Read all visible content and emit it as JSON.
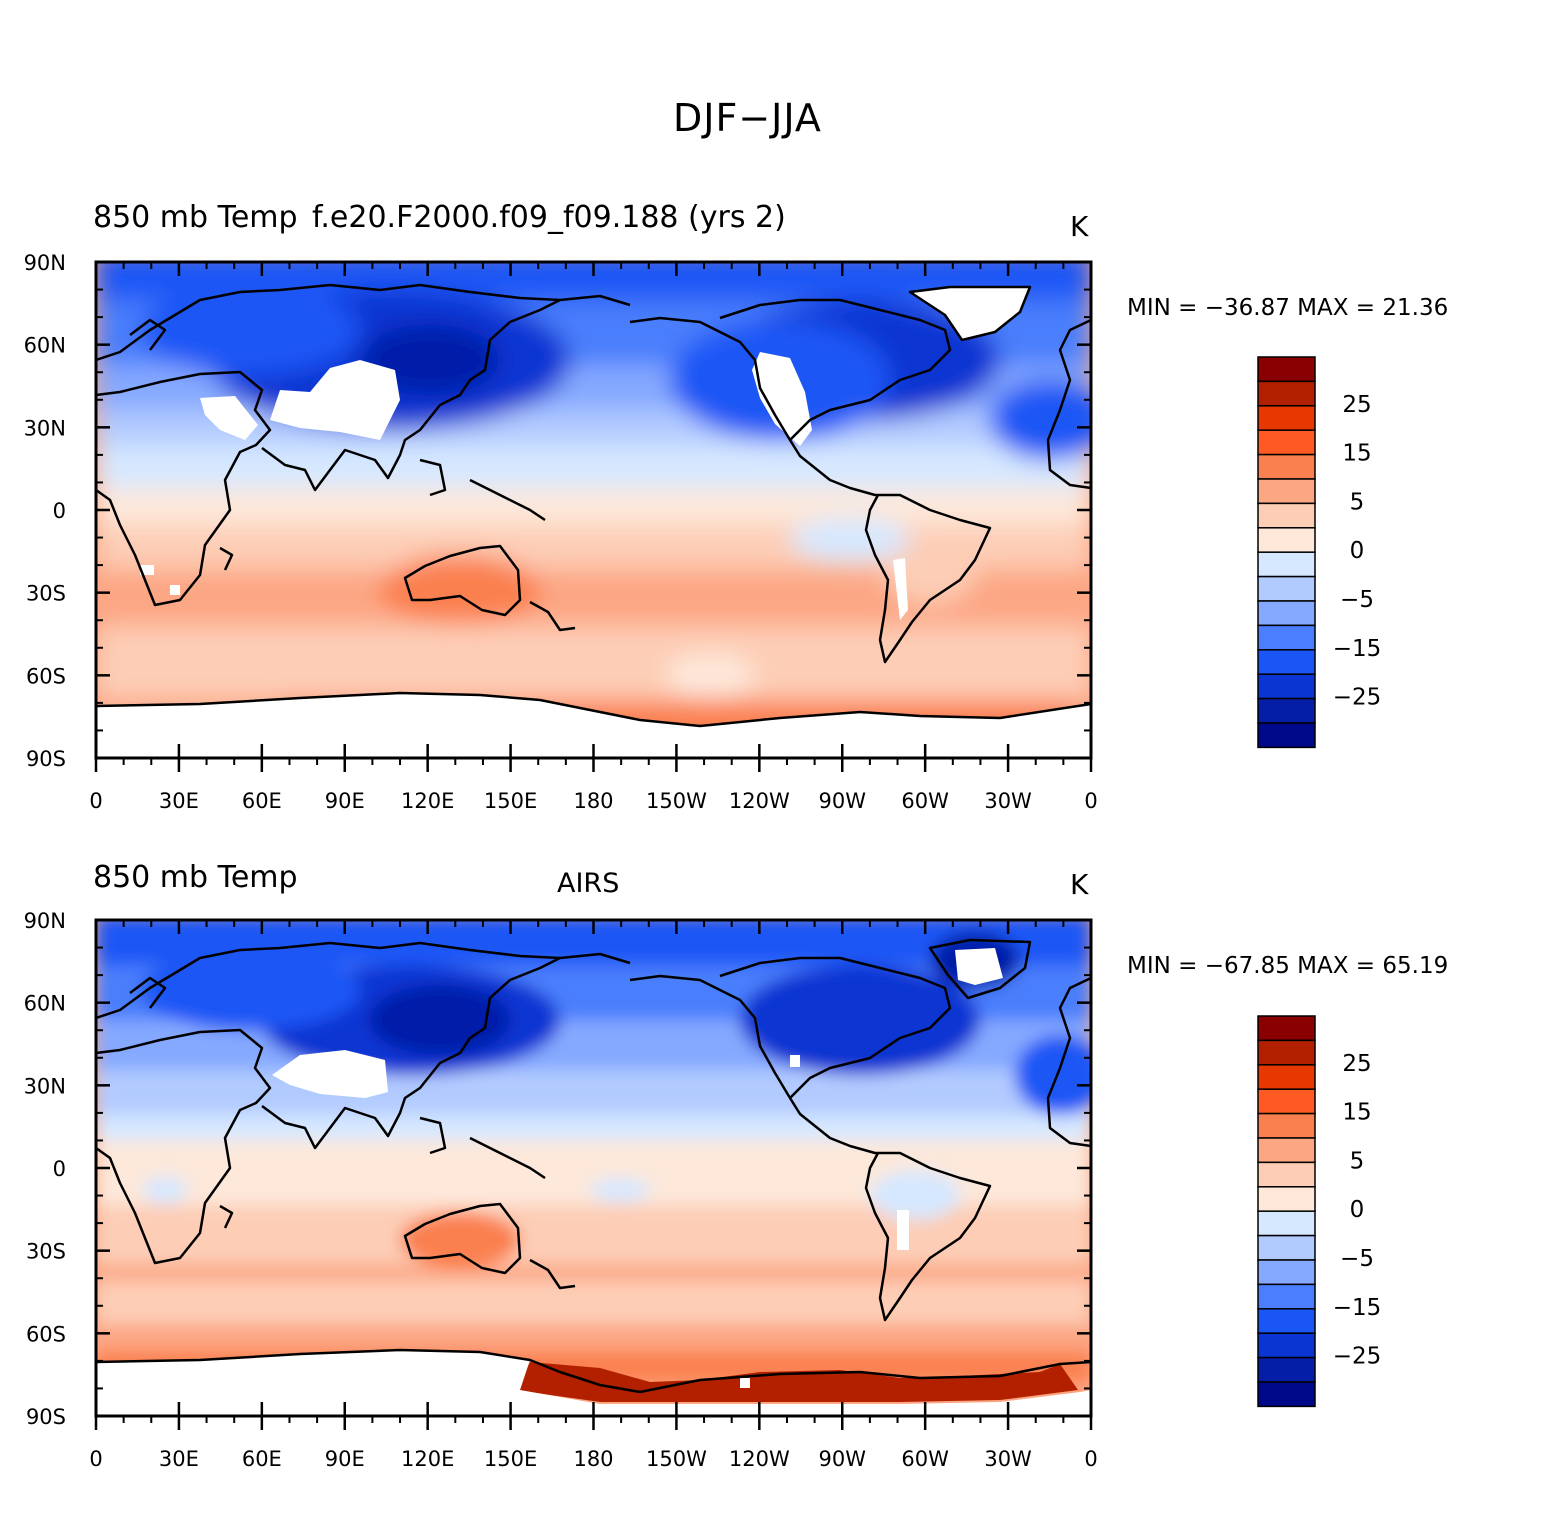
{
  "title": "DJF−JJA",
  "panels": [
    {
      "left_string": "850 mb Temp",
      "center_string": "f.e20.F2000.f09_f09.188 (yrs 2)",
      "right_string": "K",
      "minmax": "MIN = −36.87  MAX =   21.36"
    },
    {
      "left_string": "850 mb Temp",
      "center_string": "AIRS",
      "right_string": "K",
      "minmax": "MIN = −67.85  MAX =   65.19"
    }
  ],
  "lat_ticks": [
    "90N",
    "60N",
    "30N",
    "0",
    "30S",
    "60S",
    "90S"
  ],
  "lon_ticks": [
    "0",
    "30E",
    "60E",
    "90E",
    "120E",
    "150E",
    "180",
    "150W",
    "120W",
    "90W",
    "60W",
    "30W",
    "0"
  ],
  "colorbar": {
    "labels": [
      "25",
      "15",
      "5",
      "0",
      "−5",
      "−15",
      "−25"
    ],
    "colors": [
      "#8a0000",
      "#b22000",
      "#e63800",
      "#ff5a24",
      "#fb8050",
      "#fca684",
      "#fdcdb6",
      "#fde8da",
      "#d6e8ff",
      "#b2cbff",
      "#85a9ff",
      "#4a7efc",
      "#1a56f5",
      "#0a35d2",
      "#041ea8",
      "#00088a"
    ]
  },
  "chart_data": [
    {
      "type": "heatmap",
      "title": "DJF−JJA",
      "left_string": "850 mb Temp",
      "center_string": "f.e20.F2000.f09_f09.188 (yrs 2)",
      "units": "K",
      "x_ticks": [
        "0",
        "30E",
        "60E",
        "90E",
        "120E",
        "150E",
        "180",
        "150W",
        "120W",
        "90W",
        "60W",
        "30W",
        "0"
      ],
      "y_ticks": [
        "90N",
        "60N",
        "30N",
        "0",
        "30S",
        "60S",
        "90S"
      ],
      "xlim": [
        0,
        360
      ],
      "ylim": [
        -90,
        90
      ],
      "min": -36.87,
      "max": 21.36,
      "colorbar_labels": [
        25,
        15,
        5,
        0,
        -5,
        -15,
        -25
      ]
    },
    {
      "type": "heatmap",
      "title": "DJF−JJA",
      "left_string": "850 mb Temp",
      "center_string": "AIRS",
      "units": "K",
      "x_ticks": [
        "0",
        "30E",
        "60E",
        "90E",
        "120E",
        "150E",
        "180",
        "150W",
        "120W",
        "90W",
        "60W",
        "30W",
        "0"
      ],
      "y_ticks": [
        "90N",
        "60N",
        "30N",
        "0",
        "30S",
        "60S",
        "90S"
      ],
      "xlim": [
        0,
        360
      ],
      "ylim": [
        -90,
        90
      ],
      "min": -67.85,
      "max": 65.19,
      "colorbar_labels": [
        25,
        15,
        5,
        0,
        -5,
        -15,
        -25
      ]
    }
  ]
}
